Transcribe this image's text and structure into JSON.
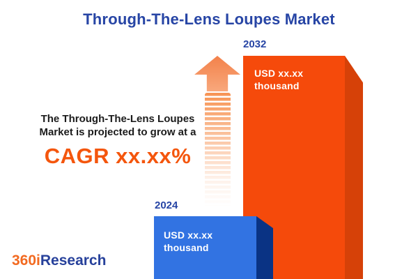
{
  "chart_data": {
    "type": "bar",
    "title": "Through-The-Lens Loupes Market",
    "categories": [
      "2024",
      "2032"
    ],
    "values": [
      "xx.xx",
      "xx.xx"
    ],
    "unit": "USD thousand",
    "value_labels": [
      "USD xx.xx thousand",
      "USD xx.xx thousand"
    ],
    "annotation": {
      "line1": "The Through-The-Lens  Loupes",
      "line2": "Market is projected to grow at a",
      "cagr": "CAGR xx.xx%"
    },
    "layout": {
      "orientation": "vertical",
      "legend": false,
      "axes_visible": false,
      "grid": false
    },
    "colors": {
      "title_blue": "#2745a5",
      "bar_2024_front": "#3273e2",
      "bar_2024_side": "#0a3384",
      "bar_2032_front": "#f54a0b",
      "bar_2032_side": "#d64108",
      "cagr_orange": "#f4560d",
      "arrow_orange": "#f3814a",
      "body_text": "#1b1b1b"
    }
  },
  "branding": {
    "logo_prefix": "360i",
    "logo_suffix": "Research"
  }
}
